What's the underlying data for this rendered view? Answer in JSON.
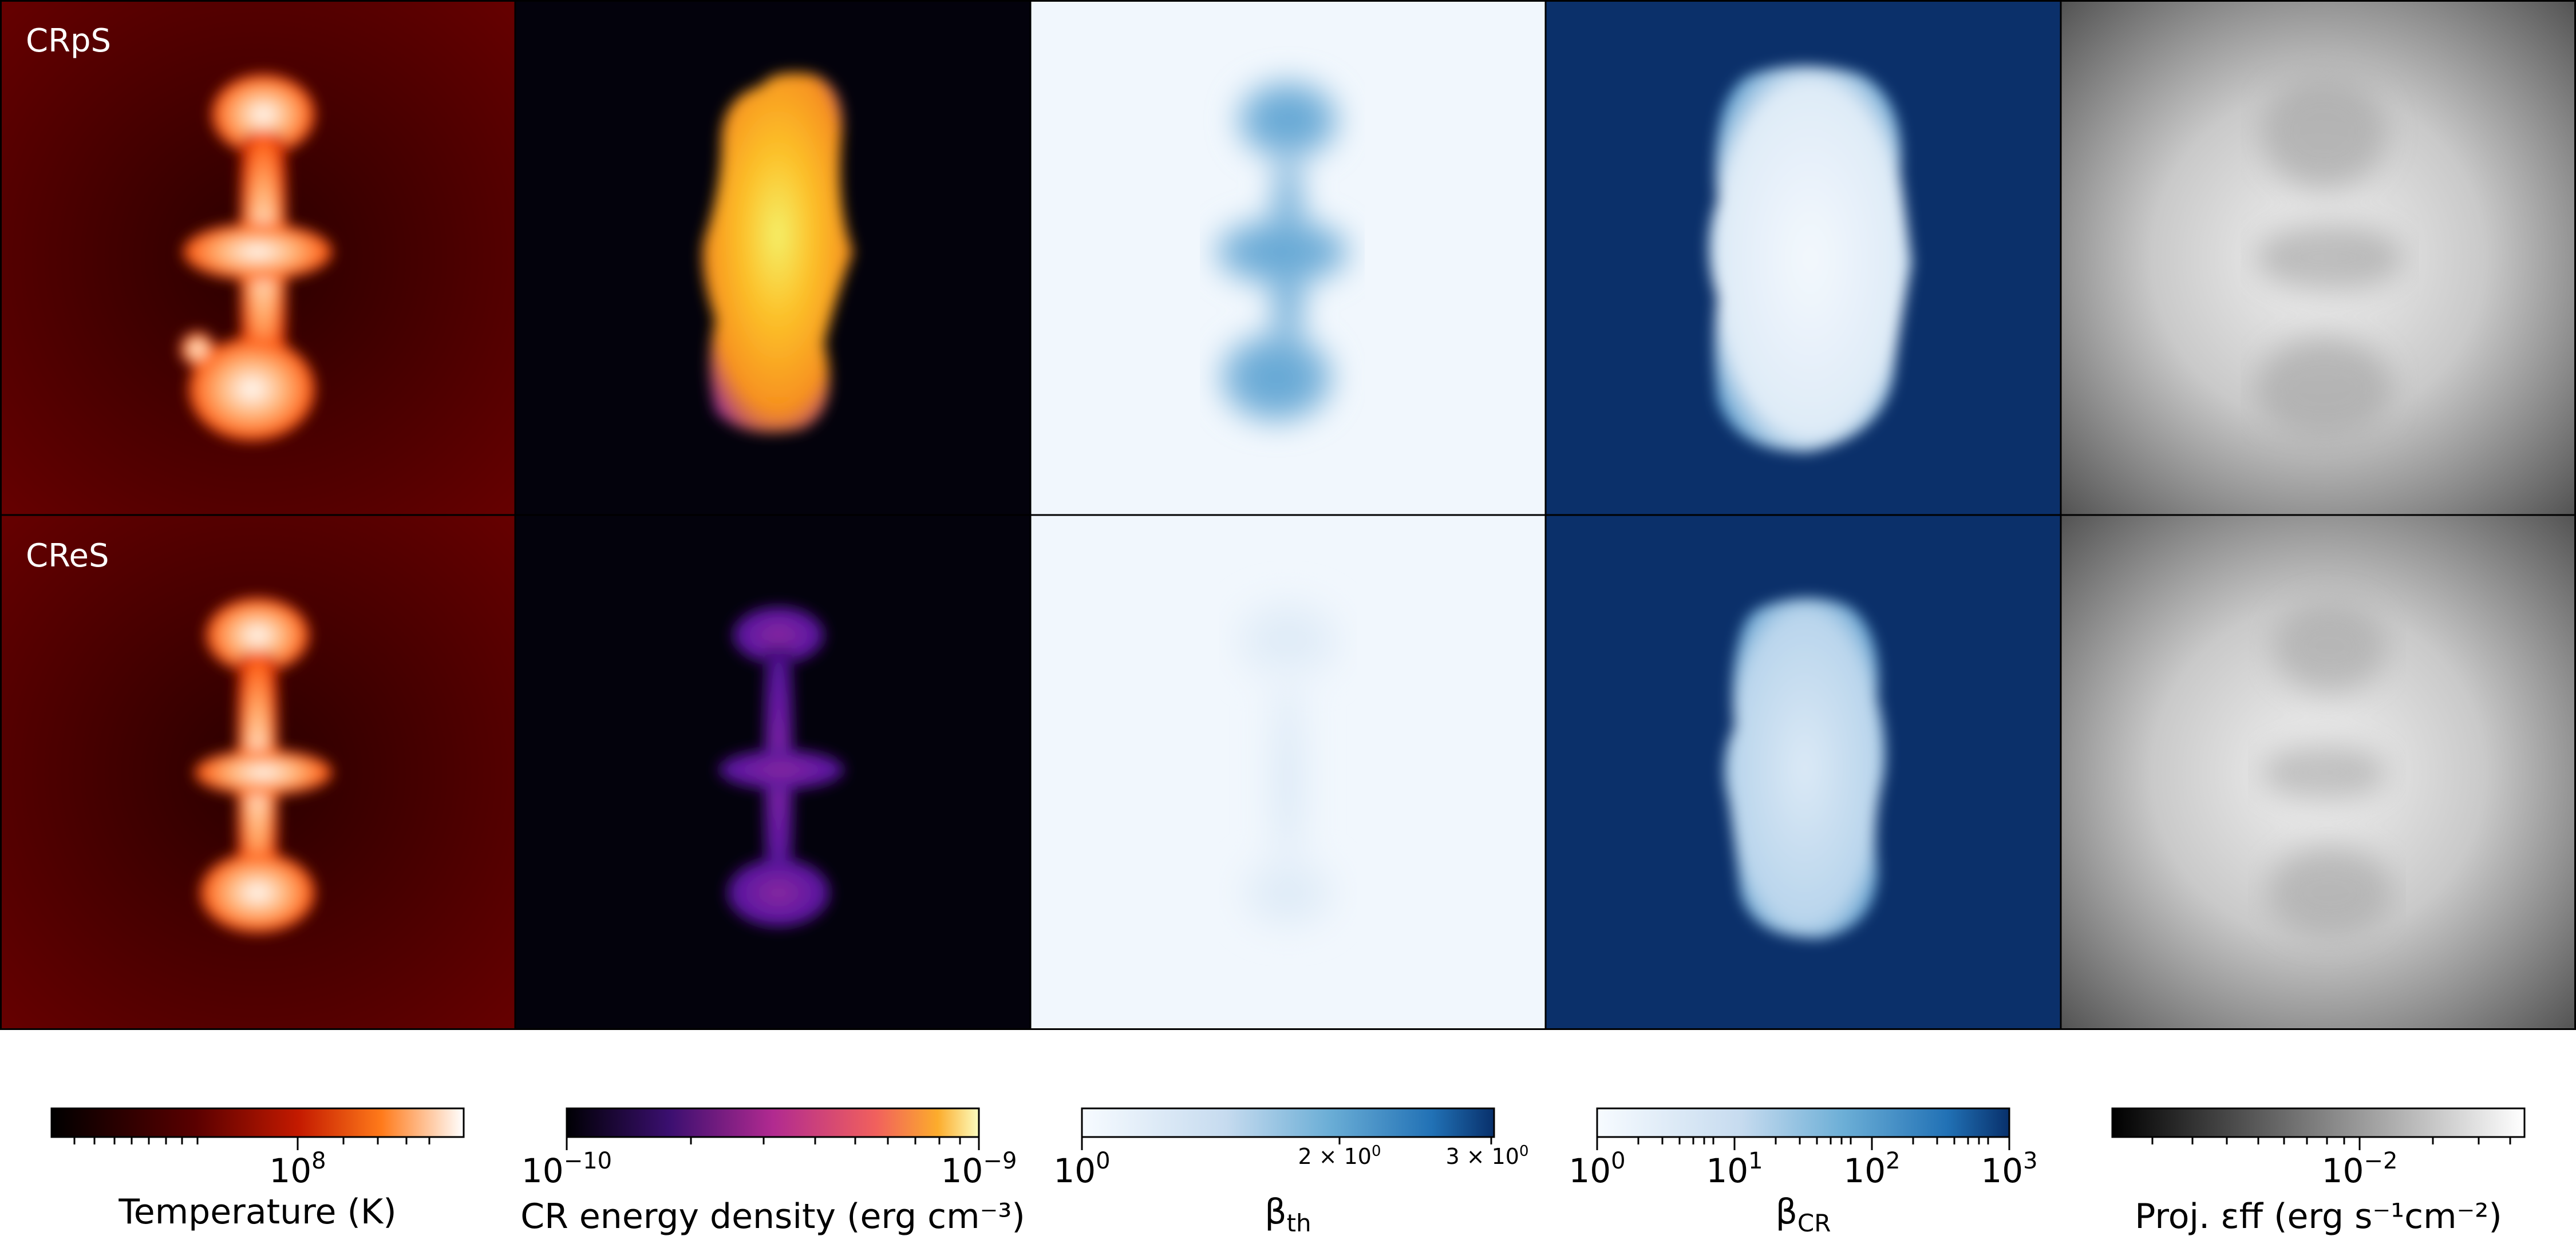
{
  "figure": {
    "rows": [
      {
        "label": "CRpS"
      },
      {
        "label": "CReS"
      }
    ],
    "quantities": [
      {
        "id": "temperature",
        "colormap": "gist_heat",
        "background": "#5e0000",
        "colorbar": {
          "label": "Temperature (K)",
          "scale": "log",
          "ticks": [
            {
              "base": "10",
              "exp": "8",
              "size": "large"
            }
          ]
        }
      },
      {
        "id": "cr-energy-density",
        "colormap": "plasma",
        "background": "#03020c",
        "colorbar": {
          "label": "CR energy density (erg cm⁻³)",
          "scale": "log",
          "ticks": [
            {
              "base": "10",
              "exp": "−10",
              "size": "large"
            },
            {
              "base": "10",
              "exp": "−9",
              "size": "large"
            }
          ]
        }
      },
      {
        "id": "beta-th",
        "colormap": "Blues",
        "background": "#f1f7fd",
        "colorbar": {
          "label": "βth",
          "label_main": "β",
          "label_sub": "th",
          "scale": "log",
          "ticks": [
            {
              "base": "10",
              "exp": "0",
              "size": "large"
            },
            {
              "base": "2 × 10",
              "exp": "0",
              "size": "small"
            },
            {
              "base": "3 × 10",
              "exp": "0",
              "size": "small"
            }
          ]
        }
      },
      {
        "id": "beta-cr",
        "colormap": "Blues",
        "background": "#0b306a",
        "colorbar": {
          "label": "βCR",
          "label_main": "β",
          "label_sub": "CR",
          "scale": "log",
          "ticks": [
            {
              "base": "10",
              "exp": "0",
              "size": "large"
            },
            {
              "base": "10",
              "exp": "1",
              "size": "large"
            },
            {
              "base": "10",
              "exp": "2",
              "size": "large"
            },
            {
              "base": "10",
              "exp": "3",
              "size": "large"
            }
          ]
        }
      },
      {
        "id": "proj-emissivity",
        "colormap": "gray",
        "background": "#6f6f6f",
        "colorbar": {
          "label": "Proj. εff (erg s⁻¹cm⁻²)",
          "scale": "log",
          "ticks": [
            {
              "base": "10",
              "exp": "−2",
              "size": "large"
            }
          ]
        }
      }
    ]
  }
}
